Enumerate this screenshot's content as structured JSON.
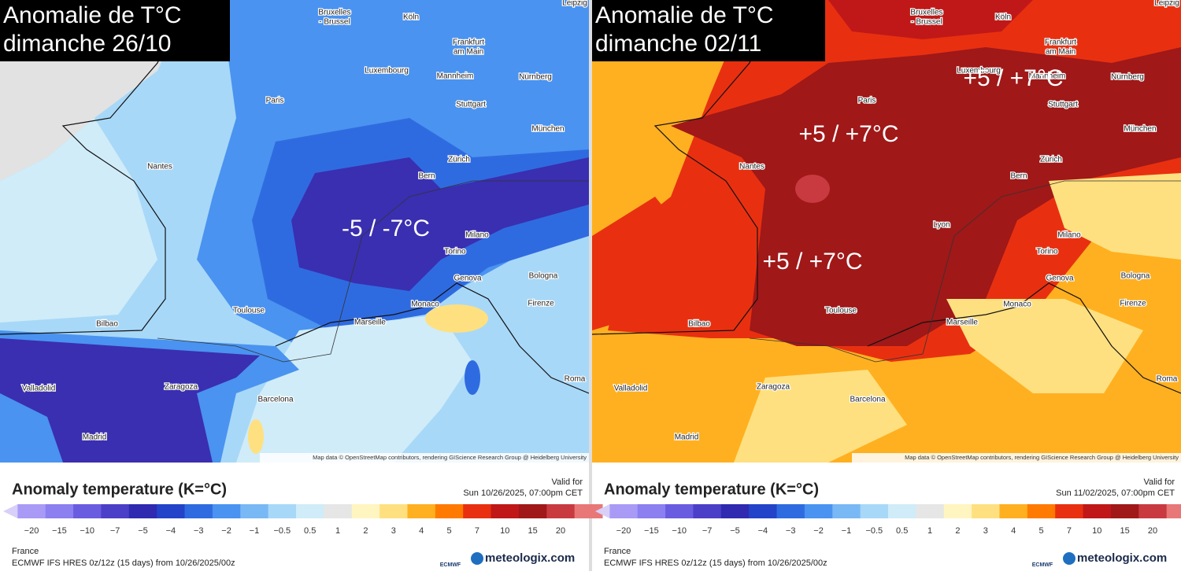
{
  "panels": [
    {
      "title_lines": [
        "Anomalie de T°C",
        "dimanche 26/10"
      ],
      "annotations": [
        "-5 / -7°C"
      ],
      "valid_time": "Sun 10/26/2025, 07:00pm CET"
    },
    {
      "title_lines": [
        "Anomalie de T°C",
        "dimanche 02/11"
      ],
      "annotations": [
        "+5 / +7°C",
        "+5 / +7°C",
        "+5 / +7°C"
      ],
      "valid_time": "Sun 11/02/2025, 07:00pm CET"
    }
  ],
  "cities": [
    "Leipzig",
    "Bruxelles",
    "- Brussel",
    "Köln",
    "Frankfurt",
    "am Main",
    "Luxembourg",
    "Mannheim",
    "Nürnberg",
    "Paris",
    "Stuttgart",
    "München",
    "Nantes",
    "Zürich",
    "Bern",
    "Lyon",
    "Milano",
    "Torino",
    "Genova",
    "Bologna",
    "Monaco",
    "Firenze",
    "Toulouse",
    "Marseille",
    "Bilbao",
    "Valladolid",
    "Zaragoza",
    "Barcelona",
    "Madrid",
    "Roma"
  ],
  "attribution": "Map data © OpenStreetMap contributors, rendering GIScience Research Group @ Heidelberg University",
  "legend": {
    "title": "Anomaly temperature (K=°C)",
    "valid_label": "Valid for",
    "ticks": [
      "−20",
      "−15",
      "−10",
      "−7",
      "−5",
      "−4",
      "−3",
      "−2",
      "−1",
      "−0.5",
      "0.5",
      "1",
      "2",
      "3",
      "4",
      "5",
      "7",
      "10",
      "15",
      "20"
    ]
  },
  "footer": {
    "region": "France",
    "model": "ECMWF IFS HRES 0z/12z (15 days) from 10/26/2025/00z",
    "logo": "ECMWF",
    "brand": "meteologix.com"
  }
}
